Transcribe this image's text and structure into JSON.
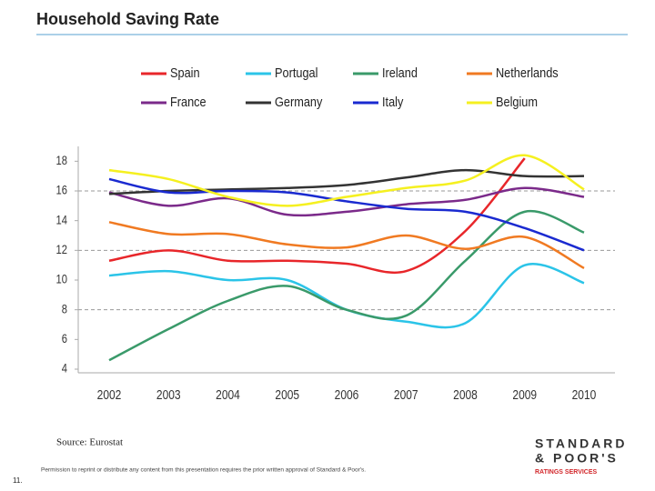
{
  "slide": {
    "title": "Household Saving Rate",
    "source": "Source: Eurostat",
    "permission": "Permission to reprint or distribute any content from this presentation requires the prior written approval of Standard & Poor's.",
    "page_number": "11.",
    "logo": [
      "STANDARD",
      "& POOR'S",
      "RATINGS SERVICES"
    ]
  },
  "chart_data": {
    "type": "line",
    "x": [
      2002,
      2003,
      2004,
      2005,
      2006,
      2007,
      2008,
      2009,
      2010
    ],
    "xlim": [
      2002,
      2010
    ],
    "ylim": [
      4,
      19
    ],
    "yticks": [
      4,
      6,
      8,
      10,
      12,
      14,
      16,
      18
    ],
    "grid_lines": [
      8,
      12,
      16
    ],
    "grid_style": "dashed",
    "series": [
      {
        "name": "Spain",
        "color": "#e8262a",
        "values": [
          11.3,
          12.0,
          11.3,
          11.3,
          11.1,
          10.6,
          13.3,
          18.2,
          null
        ]
      },
      {
        "name": "Portugal",
        "color": "#2bc4e8",
        "values": [
          10.3,
          10.6,
          10.0,
          10.0,
          8.0,
          7.2,
          7.1,
          11.0,
          9.8
        ]
      },
      {
        "name": "Ireland",
        "color": "#3a9a6a",
        "values": [
          4.6,
          6.7,
          8.6,
          9.6,
          8.0,
          7.6,
          11.3,
          14.6,
          13.2
        ]
      },
      {
        "name": "Netherlands",
        "color": "#f07a22",
        "values": [
          13.9,
          13.1,
          13.1,
          12.4,
          12.2,
          13.0,
          12.1,
          12.9,
          10.8
        ]
      },
      {
        "name": "France",
        "color": "#7b2a8a",
        "values": [
          15.9,
          15.0,
          15.5,
          14.4,
          14.6,
          15.1,
          15.4,
          16.2,
          15.6
        ]
      },
      {
        "name": "Germany",
        "color": "#333333",
        "values": [
          15.8,
          16.0,
          16.1,
          16.2,
          16.4,
          16.9,
          17.4,
          17.0,
          17.0
        ]
      },
      {
        "name": "Italy",
        "color": "#1a2ad0",
        "values": [
          16.8,
          15.9,
          16.0,
          15.9,
          15.3,
          14.8,
          14.6,
          13.5,
          12.0
        ]
      },
      {
        "name": "Belgium",
        "color": "#f5f020",
        "values": [
          17.4,
          16.8,
          15.6,
          15.0,
          15.6,
          16.2,
          16.7,
          18.4,
          16.1
        ]
      }
    ]
  }
}
